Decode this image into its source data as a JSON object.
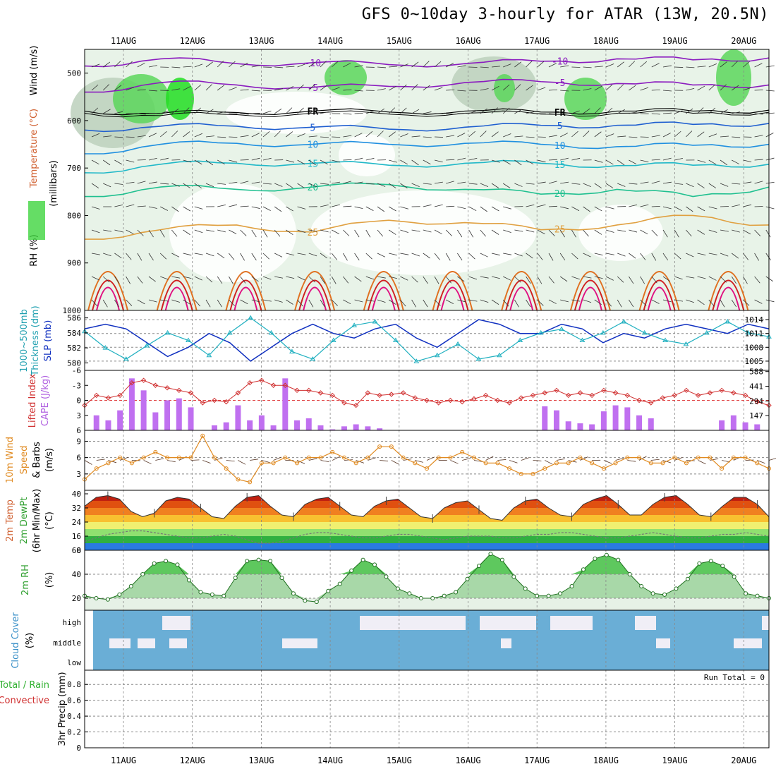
{
  "title": "GFS 0~10day 3-hourly for ATAR (13W, 20.5N)",
  "dates": [
    "11AUG",
    "12AUG",
    "13AUG",
    "14AUG",
    "15AUG",
    "16AUG",
    "17AUG",
    "18AUG",
    "19AUG",
    "20AUG"
  ],
  "colors": {
    "rh": "#3fd43f",
    "temp_cold": "#8b1cbf",
    "temp_warm": "#cc0000",
    "slp": "#1030c0",
    "thick": "#20b0c0",
    "li": "#d03030",
    "cape": "#c070f0",
    "wind": "#e08a20",
    "rh2m": "#30b030",
    "cloud": "#6aaed6",
    "cloud_fill": "#f0eef6"
  },
  "labels": {
    "p1_y_rh": "RH (%)",
    "p1_y_temp": "Temperature (°C)",
    "p1_y_wind": "Wind (m/s)",
    "p1_y_mb": "(millibars)",
    "fr": "FR",
    "p2_y_thick1": "1000~500mb",
    "p2_y_thick2": "Thickness (dm)",
    "p2_y_slp": "SLP (mb)",
    "p3_y_li": "Lifted Index",
    "p3_y_cape": "CAPE (J/kg)",
    "p4_y_wind": "10m Wind",
    "p4_y_speed": "Speed",
    "p4_y_barbs": "& Barbs",
    "p4_y_unit": "(m/s)",
    "p5_y_temp": "2m Temp",
    "p5_y_dew": "2m DewPt",
    "p5_y_minmax": "(6hr Min/Max)",
    "p5_y_unit": "(°C)",
    "p6_y_rh": "2m RH",
    "p6_y_unit": "(%)",
    "p7_y_cloud": "Cloud Cover",
    "p7_y_unit": "(%)",
    "p7_high": "high",
    "p7_middle": "middle",
    "p7_low": "low",
    "p8_y_total": "Total / Rain",
    "p8_y_conv": "Convective",
    "p8_y_precip": "3hr Precip (mm)",
    "run_total": "Run Total = 0"
  },
  "chart_data": [
    {
      "type": "heatmap",
      "name": "pressure-level cross section",
      "yaxis_ticks": [
        "500",
        "600",
        "700",
        "800",
        "900",
        "1000"
      ],
      "ylim": [
        450,
        1000
      ],
      "temp_contour_labels": [
        "-10",
        "-5",
        "FR",
        "5",
        "10",
        "15",
        "20",
        "25"
      ],
      "freezing_level_mb": 580,
      "contours": [
        {
          "label": "-10",
          "level_mb": [
            485,
            470,
            480,
            478,
            482,
            480,
            475,
            470,
            472,
            468
          ]
        },
        {
          "label": "-5",
          "level_mb": [
            540,
            520,
            525,
            530,
            528,
            520,
            518,
            522,
            525,
            525
          ]
        },
        {
          "label": "FR",
          "level_mb": [
            580,
            585,
            583,
            580,
            582,
            580,
            582,
            580,
            580,
            578
          ]
        },
        {
          "label": "5",
          "level_mb": [
            620,
            612,
            612,
            614,
            618,
            614,
            610,
            610,
            608,
            606
          ]
        },
        {
          "label": "10",
          "level_mb": [
            670,
            650,
            648,
            650,
            650,
            648,
            650,
            655,
            652,
            650
          ]
        },
        {
          "label": "15",
          "level_mb": [
            710,
            692,
            690,
            690,
            694,
            690,
            690,
            695,
            694,
            692
          ]
        },
        {
          "label": "20",
          "level_mb": [
            760,
            740,
            745,
            740,
            735,
            745,
            755,
            745,
            760,
            740
          ]
        },
        {
          "label": "25",
          "level_mb": [
            850,
            830,
            820,
            835,
            810,
            815,
            830,
            820,
            800,
            820
          ]
        }
      ]
    },
    {
      "type": "line",
      "name": "thickness and slp",
      "thickness_ticks": [
        "580",
        "582",
        "584",
        "586"
      ],
      "slp_ticks": [
        "1005",
        "1008",
        "1011",
        "1014"
      ],
      "series": [
        {
          "name": "SLP",
          "values": [
            1012,
            1013,
            1012,
            1009,
            1006,
            1008,
            1011,
            1009,
            1005,
            1008,
            1011,
            1013,
            1011,
            1010,
            1012,
            1013,
            1010,
            1008,
            1011,
            1014,
            1013,
            1011,
            1011,
            1013,
            1012,
            1009,
            1011,
            1010,
            1012,
            1013,
            1012,
            1011,
            1013,
            1012
          ]
        },
        {
          "name": "Thickness",
          "values": [
            584.2,
            582,
            580.5,
            582.3,
            584,
            583,
            581,
            584,
            586,
            584,
            581.5,
            580.5,
            583,
            585,
            585.5,
            583,
            580.2,
            581,
            582.5,
            580.5,
            581,
            583,
            584,
            584.5,
            583,
            584,
            585.5,
            584,
            583,
            582.5,
            584,
            585.5,
            584,
            583.5
          ]
        }
      ]
    },
    {
      "type": "bar",
      "name": "CAPE and lifted index",
      "li_ticks": [
        "-6",
        "-3",
        "0",
        "3",
        "6"
      ],
      "cape_ticks": [
        "147",
        "294",
        "441",
        "588"
      ],
      "series": [
        {
          "name": "CAPE",
          "values": [
            0,
            150,
            100,
            200,
            520,
            400,
            180,
            300,
            320,
            230,
            0,
            50,
            80,
            250,
            100,
            150,
            50,
            520,
            100,
            120,
            50,
            10,
            40,
            60,
            40,
            20,
            0,
            0,
            0,
            0,
            0,
            0,
            0,
            0,
            0,
            0,
            0,
            0,
            0,
            240,
            200,
            90,
            70,
            60,
            190,
            250,
            230,
            150,
            120,
            0,
            0,
            0,
            0,
            0,
            100,
            150,
            80,
            60,
            0
          ]
        },
        {
          "name": "Lifted Index",
          "values": [
            1,
            -1,
            -0.5,
            -1,
            -3.5,
            -4,
            -3,
            -2.5,
            -2,
            -1.5,
            0.5,
            0,
            0.3,
            -1.5,
            -3.5,
            -4,
            -3,
            -3,
            -2,
            -2,
            -1.5,
            -1,
            0.5,
            1,
            -1.5,
            -1,
            -1.2,
            -1.5,
            -0.5,
            0,
            0.5,
            0,
            0.3,
            -0.3,
            -1,
            0,
            0.5,
            -0.5,
            -1,
            -1.5,
            -2,
            -1,
            -1.5,
            -1,
            -2,
            -1.5,
            -1,
            0,
            0.5,
            -0.5,
            -1,
            -2,
            -1,
            -1.5,
            -2,
            -1.5,
            -1,
            0.3,
            1
          ]
        }
      ]
    },
    {
      "type": "line",
      "name": "10m wind speed",
      "yaxis_ticks": [
        "3",
        "6",
        "9"
      ],
      "ylim": [
        0,
        11
      ],
      "values": [
        2,
        4,
        5,
        6,
        5,
        6,
        7,
        6,
        6,
        6,
        10,
        6,
        4,
        2,
        1.5,
        5,
        5,
        6,
        5,
        6,
        6,
        7,
        6,
        5,
        6,
        8,
        8,
        6,
        5,
        4,
        6,
        6,
        7,
        6,
        5,
        5,
        4,
        3,
        3,
        4,
        5,
        5,
        6,
        5,
        4,
        5,
        6,
        6,
        5,
        5,
        6,
        5,
        6,
        6,
        4,
        6,
        6,
        5,
        4
      ]
    },
    {
      "type": "area",
      "name": "2m temperature",
      "yaxis_ticks": [
        "8",
        "16",
        "24",
        "32",
        "40"
      ],
      "ylim": [
        8,
        42
      ],
      "series": [
        {
          "name": "2m Temp",
          "values": [
            33,
            38,
            39,
            37,
            30,
            27,
            29,
            36,
            38,
            37,
            32,
            27,
            26,
            33,
            38,
            39,
            33,
            28,
            27,
            34,
            37,
            38,
            33,
            28,
            27,
            33,
            36,
            37,
            32,
            27,
            26,
            32,
            35,
            36,
            31,
            26,
            25,
            32,
            36,
            37,
            32,
            28,
            27,
            34,
            37,
            39,
            34,
            28,
            28,
            34,
            38,
            39,
            34,
            28,
            27,
            33,
            38,
            38,
            34,
            27
          ]
        },
        {
          "name": "2m DewPt",
          "values": [
            13,
            15,
            17,
            18,
            19,
            19,
            18,
            17,
            16,
            15,
            15,
            16,
            17,
            16,
            14,
            12,
            12,
            13,
            15,
            17,
            18,
            18,
            17,
            16,
            15,
            15,
            16,
            17,
            17,
            16,
            15,
            14,
            15,
            16,
            16,
            16,
            15,
            15,
            16,
            17,
            17,
            18,
            18,
            17,
            16,
            15,
            15,
            16,
            17,
            18,
            17,
            16,
            15,
            15,
            16,
            17,
            17,
            18,
            17,
            16
          ]
        }
      ]
    },
    {
      "type": "area",
      "name": "2m relative humidity",
      "yaxis_ticks": [
        "20",
        "40",
        "60"
      ],
      "ylim": [
        10,
        60
      ],
      "values": [
        22,
        20,
        19,
        23,
        30,
        40,
        49,
        51,
        48,
        35,
        25,
        23,
        22,
        37,
        51,
        52,
        51,
        37,
        24,
        18,
        17,
        26,
        32,
        43,
        52,
        48,
        38,
        28,
        24,
        20,
        20,
        22,
        25,
        36,
        47,
        57,
        52,
        38,
        28,
        22,
        22,
        24,
        30,
        44,
        53,
        56,
        52,
        40,
        30,
        24,
        23,
        28,
        36,
        49,
        51,
        47,
        38,
        24,
        22,
        20
      ]
    },
    {
      "type": "bar",
      "name": "cloud cover",
      "categories": [
        "high",
        "middle",
        "low"
      ],
      "yaxis_ticks": [
        "high",
        "middle",
        "low"
      ]
    },
    {
      "type": "bar",
      "name": "3hr precipitation",
      "yaxis_ticks": [
        "0",
        "0.2",
        "0.4",
        "0.6",
        "0.8"
      ],
      "ylim": [
        0,
        0.98
      ],
      "values": []
    }
  ]
}
